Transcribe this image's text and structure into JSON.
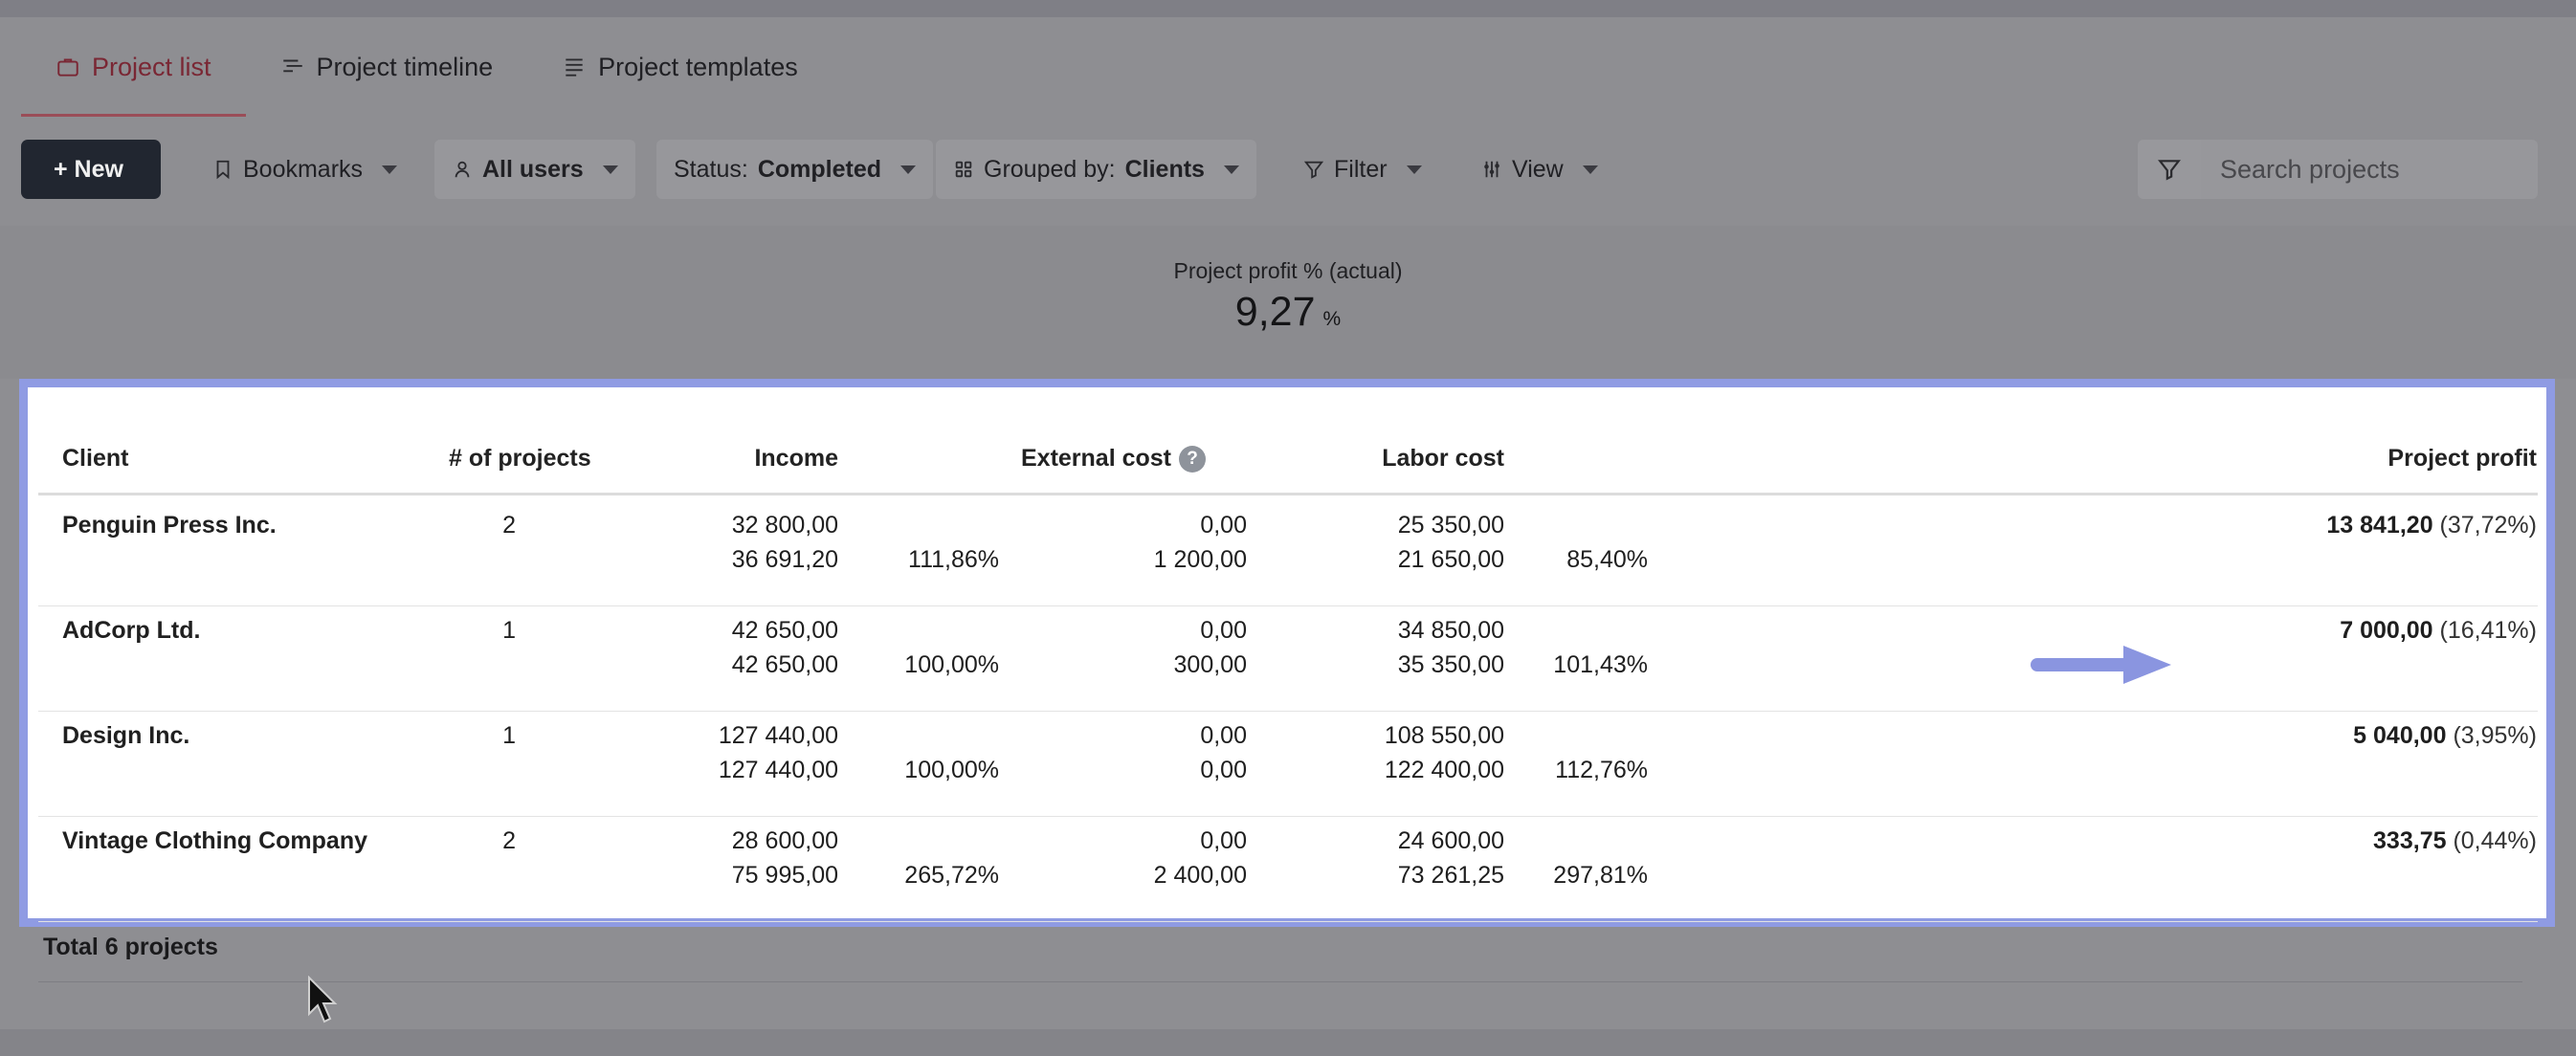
{
  "tabs": [
    {
      "label": "Project list",
      "icon": "briefcase-icon",
      "active": true
    },
    {
      "label": "Project timeline",
      "icon": "timeline-icon",
      "active": false
    },
    {
      "label": "Project templates",
      "icon": "template-list-icon",
      "active": false
    }
  ],
  "toolbar": {
    "new_label": "+ New",
    "bookmarks_label": "Bookmarks",
    "users_label": "All users",
    "status_prefix": "Status:",
    "status_value": "Completed",
    "grouped_prefix": "Grouped by:",
    "grouped_value": "Clients",
    "filter_label": "Filter",
    "view_label": "View",
    "search_placeholder": "Search projects"
  },
  "kpi": {
    "label": "Project profit % (actual)",
    "value": "9,27",
    "unit": "%"
  },
  "table": {
    "headers": {
      "client": "Client",
      "projects": "# of projects",
      "income": "Income",
      "external_cost": "External cost",
      "labor_cost": "Labor cost",
      "profit": "Project profit"
    },
    "help_glyph": "?",
    "rows": [
      {
        "client": "Penguin Press Inc.",
        "projects": "2",
        "income_planned": "32 800,00",
        "income_actual": "36 691,20",
        "income_pct": "111,86%",
        "ext_planned": "0,00",
        "ext_actual": "1 200,00",
        "labor_planned": "25 350,00",
        "labor_actual": "21 650,00",
        "labor_pct": "85,40%",
        "profit_value": "13 841,20",
        "profit_pct": "(37,72%)"
      },
      {
        "client": "AdCorp Ltd.",
        "projects": "1",
        "income_planned": "42 650,00",
        "income_actual": "42 650,00",
        "income_pct": "100,00%",
        "ext_planned": "0,00",
        "ext_actual": "300,00",
        "labor_planned": "34 850,00",
        "labor_actual": "35 350,00",
        "labor_pct": "101,43%",
        "profit_value": "7 000,00",
        "profit_pct": "(16,41%)"
      },
      {
        "client": "Design Inc.",
        "projects": "1",
        "income_planned": "127 440,00",
        "income_actual": "127 440,00",
        "income_pct": "100,00%",
        "ext_planned": "0,00",
        "ext_actual": "0,00",
        "labor_planned": "108 550,00",
        "labor_actual": "122 400,00",
        "labor_pct": "112,76%",
        "profit_value": "5 040,00",
        "profit_pct": "(3,95%)"
      },
      {
        "client": "Vintage Clothing Company",
        "projects": "2",
        "income_planned": "28 600,00",
        "income_actual": "75 995,00",
        "income_pct": "265,72%",
        "ext_planned": "0,00",
        "ext_actual": "2 400,00",
        "labor_planned": "24 600,00",
        "labor_actual": "73 261,25",
        "labor_pct": "297,81%",
        "profit_value": "333,75",
        "profit_pct": "(0,44%)"
      }
    ],
    "total_label": "Total 6 projects"
  },
  "colors": {
    "highlight_border": "#8f9be3",
    "arrow": "#8a95e0",
    "active_tab": "#7a2734",
    "new_button": "#212630"
  }
}
